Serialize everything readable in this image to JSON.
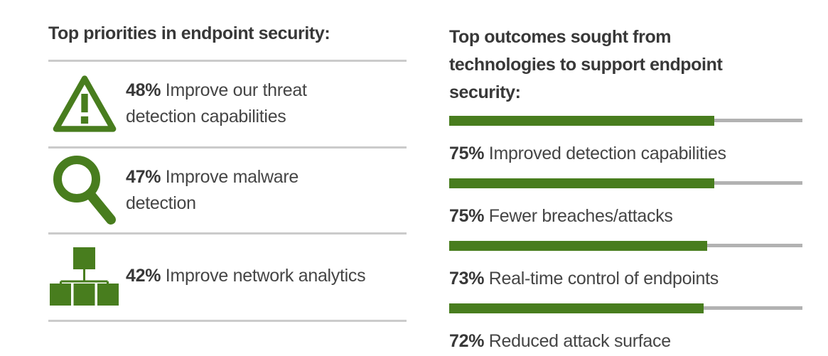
{
  "left": {
    "title": "Top priorities in endpoint security:",
    "items": [
      {
        "pct": "48%",
        "label": "Improve our threat detection capabilities",
        "icon": "warning-triangle"
      },
      {
        "pct": "47%",
        "label": "Improve malware detection",
        "icon": "magnifier"
      },
      {
        "pct": "42%",
        "label": "Improve network analytics",
        "icon": "org-chart"
      }
    ]
  },
  "right": {
    "title_lines": [
      "Top outcomes sought from",
      "technologies to support endpoint",
      "security:"
    ],
    "items": [
      {
        "pct": "75%",
        "label": "Improved detection capabilities",
        "value": 75
      },
      {
        "pct": "75%",
        "label": "Fewer breaches/attacks",
        "value": 75
      },
      {
        "pct": "73%",
        "label": "Real-time control of endpoints",
        "value": 73
      },
      {
        "pct": "72%",
        "label": "Reduced attack surface",
        "value": 72
      }
    ]
  },
  "colors": {
    "green": "#487D1E",
    "bar_track_gray": "#B2B2B2",
    "divider_gray": "#CBCBCB",
    "text_dark": "#383838"
  },
  "chart_data": [
    {
      "type": "bar",
      "title": "Top priorities in endpoint security:",
      "categories": [
        "Improve our threat detection capabilities",
        "Improve malware detection",
        "Improve network analytics"
      ],
      "values": [
        48,
        47,
        42
      ],
      "unit": "%",
      "style": "icon list with percentages, no bars",
      "icons": [
        "warning-triangle",
        "magnifier",
        "org-chart"
      ]
    },
    {
      "type": "bar",
      "title": "Top outcomes sought from technologies to support endpoint security:",
      "categories": [
        "Improved detection capabilities",
        "Fewer breaches/attacks",
        "Real-time control of endpoints",
        "Reduced attack surface"
      ],
      "values": [
        75,
        75,
        73,
        72
      ],
      "unit": "%",
      "xlim": [
        0,
        100
      ],
      "orientation": "horizontal",
      "grid": false,
      "legend": "none"
    }
  ]
}
